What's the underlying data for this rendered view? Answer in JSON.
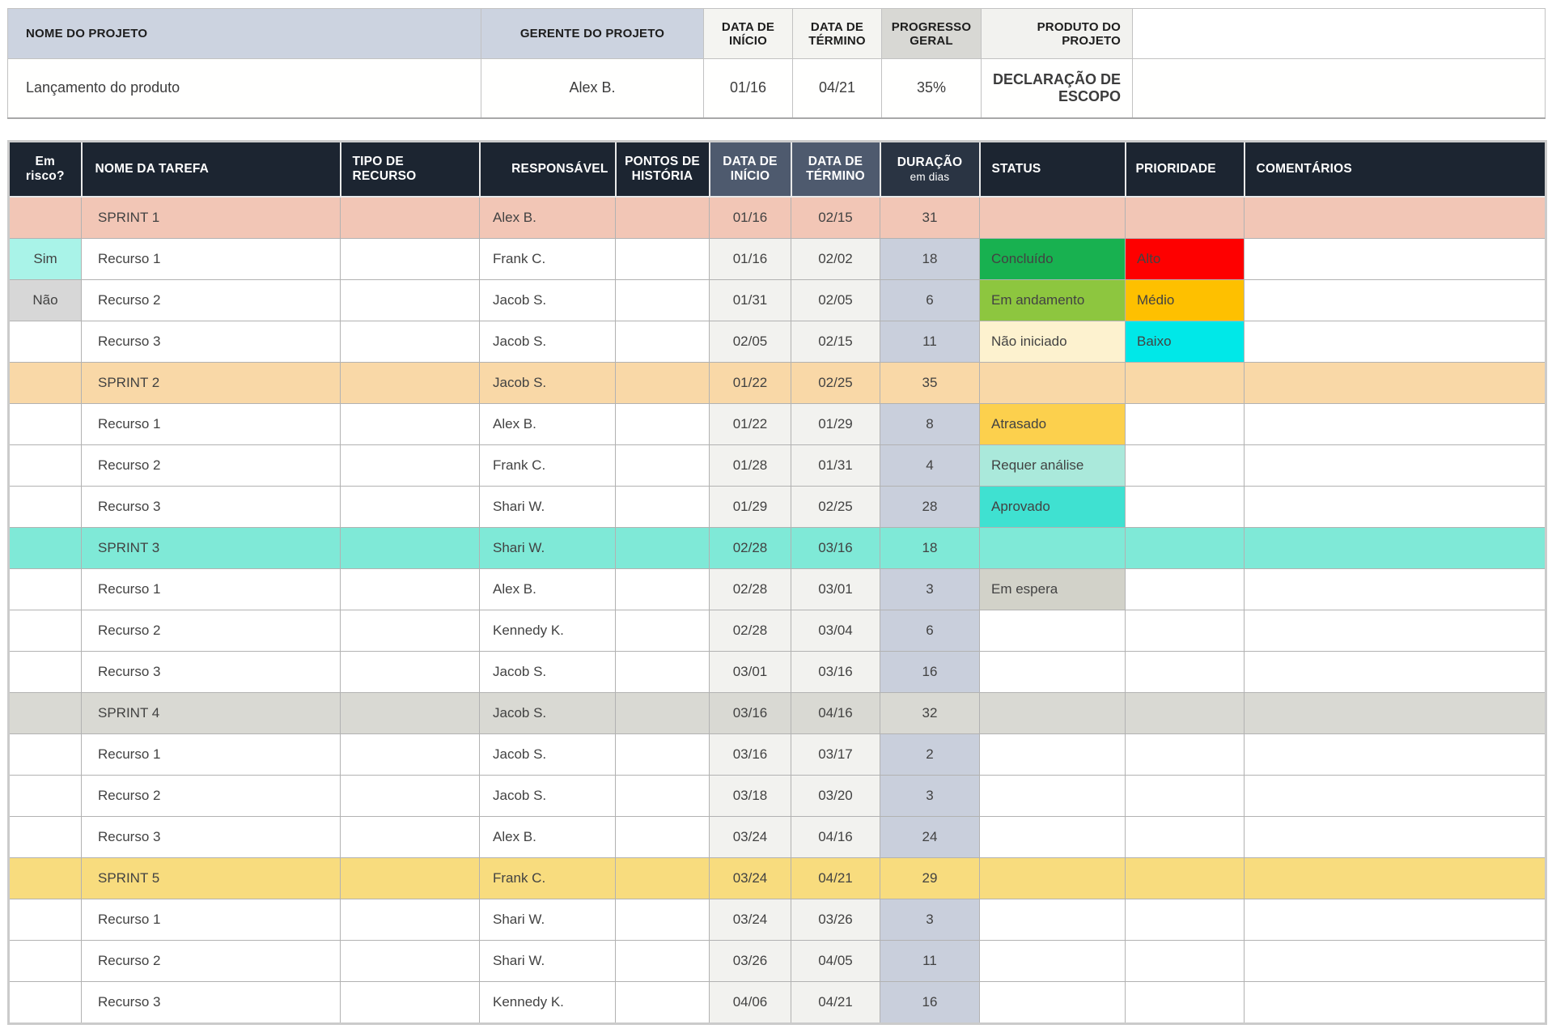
{
  "summary": {
    "headers": {
      "project_name": "NOME DO PROJETO",
      "manager": "GERENTE DO PROJETO",
      "start_date": "DATA DE\nINÍCIO",
      "end_date": "DATA DE\nTÉRMINO",
      "progress": "PROGRESSO\nGERAL",
      "deliverable": "PRODUTO DO\nPROJETO"
    },
    "values": {
      "project_name": "Lançamento do produto",
      "manager": "Alex B.",
      "start_date": "01/16",
      "end_date": "04/21",
      "progress": "35%",
      "deliverable": "DECLARAÇÃO DE\nESCOPO"
    }
  },
  "task_table": {
    "columns": [
      {
        "label": "Em\nrisco?"
      },
      {
        "label": "NOME DA TAREFA"
      },
      {
        "label": "TIPO DE\nRECURSO"
      },
      {
        "label": "RESPONSÁVEL"
      },
      {
        "label": "PONTOS DE\nHISTÓRIA"
      },
      {
        "label": "DATA DE\nINÍCIO"
      },
      {
        "label": "DATA DE\nTÉRMINO"
      },
      {
        "label": "DURAÇÃO",
        "sublabel": "em dias"
      },
      {
        "label": "STATUS"
      },
      {
        "label": "PRIORIDADE"
      },
      {
        "label": "COMENTÁRIOS"
      }
    ],
    "rows": [
      {
        "type": "sprint",
        "band": "#f2c6b6",
        "risk": "",
        "name": "SPRINT 1",
        "resource_type": "",
        "owner": "Alex B.",
        "points": "",
        "start": "01/16",
        "end": "02/15",
        "duration": "31",
        "status": null,
        "priority": null,
        "comments": ""
      },
      {
        "type": "task",
        "risk": {
          "label": "Sim",
          "color": "#a9f3e8"
        },
        "name": "Recurso 1",
        "resource_type": "",
        "owner": "Frank C.",
        "points": "",
        "start": "01/16",
        "end": "02/02",
        "duration": "18",
        "status": {
          "label": "Concluído",
          "color": "#18b150"
        },
        "priority": {
          "label": "Alto",
          "color": "#fe0000"
        },
        "comments": ""
      },
      {
        "type": "task",
        "risk": {
          "label": "Não",
          "color": "#d7d7d7"
        },
        "name": "Recurso 2",
        "resource_type": "",
        "owner": "Jacob S.",
        "points": "",
        "start": "01/31",
        "end": "02/05",
        "duration": "6",
        "status": {
          "label": "Em andamento",
          "color": "#8dc63f"
        },
        "priority": {
          "label": "Médio",
          "color": "#fec000"
        },
        "comments": ""
      },
      {
        "type": "task",
        "risk": "",
        "name": "Recurso 3",
        "resource_type": "",
        "owner": "Jacob S.",
        "points": "",
        "start": "02/05",
        "end": "02/15",
        "duration": "11",
        "status": {
          "label": "Não iniciado",
          "color": "#fdf2cf"
        },
        "priority": {
          "label": "Baixo",
          "color": "#00e8e8"
        },
        "comments": ""
      },
      {
        "type": "sprint",
        "band": "#f9d8a7",
        "risk": "",
        "name": "SPRINT 2",
        "resource_type": "",
        "owner": "Jacob S.",
        "points": "",
        "start": "01/22",
        "end": "02/25",
        "duration": "35",
        "status": null,
        "priority": null,
        "comments": ""
      },
      {
        "type": "task",
        "risk": "",
        "name": "Recurso 1",
        "resource_type": "",
        "owner": "Alex B.",
        "points": "",
        "start": "01/22",
        "end": "01/29",
        "duration": "8",
        "status": {
          "label": "Atrasado",
          "color": "#fcd04d"
        },
        "priority": null,
        "comments": ""
      },
      {
        "type": "task",
        "risk": "",
        "name": "Recurso 2",
        "resource_type": "",
        "owner": "Frank C.",
        "points": "",
        "start": "01/28",
        "end": "01/31",
        "duration": "4",
        "status": {
          "label": "Requer análise",
          "color": "#aae9db"
        },
        "priority": null,
        "comments": ""
      },
      {
        "type": "task",
        "risk": "",
        "name": "Recurso 3",
        "resource_type": "",
        "owner": "Shari W.",
        "points": "",
        "start": "01/29",
        "end": "02/25",
        "duration": "28",
        "status": {
          "label": "Aprovado",
          "color": "#3fe1d1"
        },
        "priority": null,
        "comments": ""
      },
      {
        "type": "sprint",
        "band": "#7fe9d7",
        "risk": "",
        "name": "SPRINT 3",
        "resource_type": "",
        "owner": "Shari W.",
        "points": "",
        "start": "02/28",
        "end": "03/16",
        "duration": "18",
        "status": null,
        "priority": null,
        "comments": ""
      },
      {
        "type": "task",
        "risk": "",
        "name": "Recurso 1",
        "resource_type": "",
        "owner": "Alex B.",
        "points": "",
        "start": "02/28",
        "end": "03/01",
        "duration": "3",
        "status": {
          "label": "Em espera",
          "color": "#d2d2c9"
        },
        "priority": null,
        "comments": ""
      },
      {
        "type": "task",
        "risk": "",
        "name": "Recurso 2",
        "resource_type": "",
        "owner": "Kennedy K.",
        "points": "",
        "start": "02/28",
        "end": "03/04",
        "duration": "6",
        "status": null,
        "priority": null,
        "comments": ""
      },
      {
        "type": "task",
        "risk": "",
        "name": "Recurso 3",
        "resource_type": "",
        "owner": "Jacob S.",
        "points": "",
        "start": "03/01",
        "end": "03/16",
        "duration": "16",
        "status": null,
        "priority": null,
        "comments": ""
      },
      {
        "type": "sprint",
        "band": "#d9d9d3",
        "risk": "",
        "name": "SPRINT 4",
        "resource_type": "",
        "owner": "Jacob S.",
        "points": "",
        "start": "03/16",
        "end": "04/16",
        "duration": "32",
        "status": null,
        "priority": null,
        "comments": ""
      },
      {
        "type": "task",
        "risk": "",
        "name": "Recurso 1",
        "resource_type": "",
        "owner": "Jacob S.",
        "points": "",
        "start": "03/16",
        "end": "03/17",
        "duration": "2",
        "status": null,
        "priority": null,
        "comments": ""
      },
      {
        "type": "task",
        "risk": "",
        "name": "Recurso 2",
        "resource_type": "",
        "owner": "Jacob S.",
        "points": "",
        "start": "03/18",
        "end": "03/20",
        "duration": "3",
        "status": null,
        "priority": null,
        "comments": ""
      },
      {
        "type": "task",
        "risk": "",
        "name": "Recurso 3",
        "resource_type": "",
        "owner": "Alex B.",
        "points": "",
        "start": "03/24",
        "end": "04/16",
        "duration": "24",
        "status": null,
        "priority": null,
        "comments": ""
      },
      {
        "type": "sprint",
        "band": "#f8dc7e",
        "risk": "",
        "name": "SPRINT 5",
        "resource_type": "",
        "owner": "Frank C.",
        "points": "",
        "start": "03/24",
        "end": "04/21",
        "duration": "29",
        "status": null,
        "priority": null,
        "comments": ""
      },
      {
        "type": "task",
        "risk": "",
        "name": "Recurso 1",
        "resource_type": "",
        "owner": "Shari W.",
        "points": "",
        "start": "03/24",
        "end": "03/26",
        "duration": "3",
        "status": null,
        "priority": null,
        "comments": ""
      },
      {
        "type": "task",
        "risk": "",
        "name": "Recurso 2",
        "resource_type": "",
        "owner": "Shari W.",
        "points": "",
        "start": "03/26",
        "end": "04/05",
        "duration": "11",
        "status": null,
        "priority": null,
        "comments": ""
      },
      {
        "type": "task",
        "risk": "",
        "name": "Recurso 3",
        "resource_type": "",
        "owner": "Kennedy K.",
        "points": "",
        "start": "04/06",
        "end": "04/21",
        "duration": "16",
        "status": null,
        "priority": null,
        "comments": ""
      }
    ]
  },
  "palette": {
    "header_dark": "#1c2531",
    "header_slate": "#4e5a6e",
    "header_duration": "#2a3443",
    "summary_header_blue": "#ccd3e0",
    "date_cell": "#f2f2ef",
    "duration_cell": "#c9cfdc"
  }
}
